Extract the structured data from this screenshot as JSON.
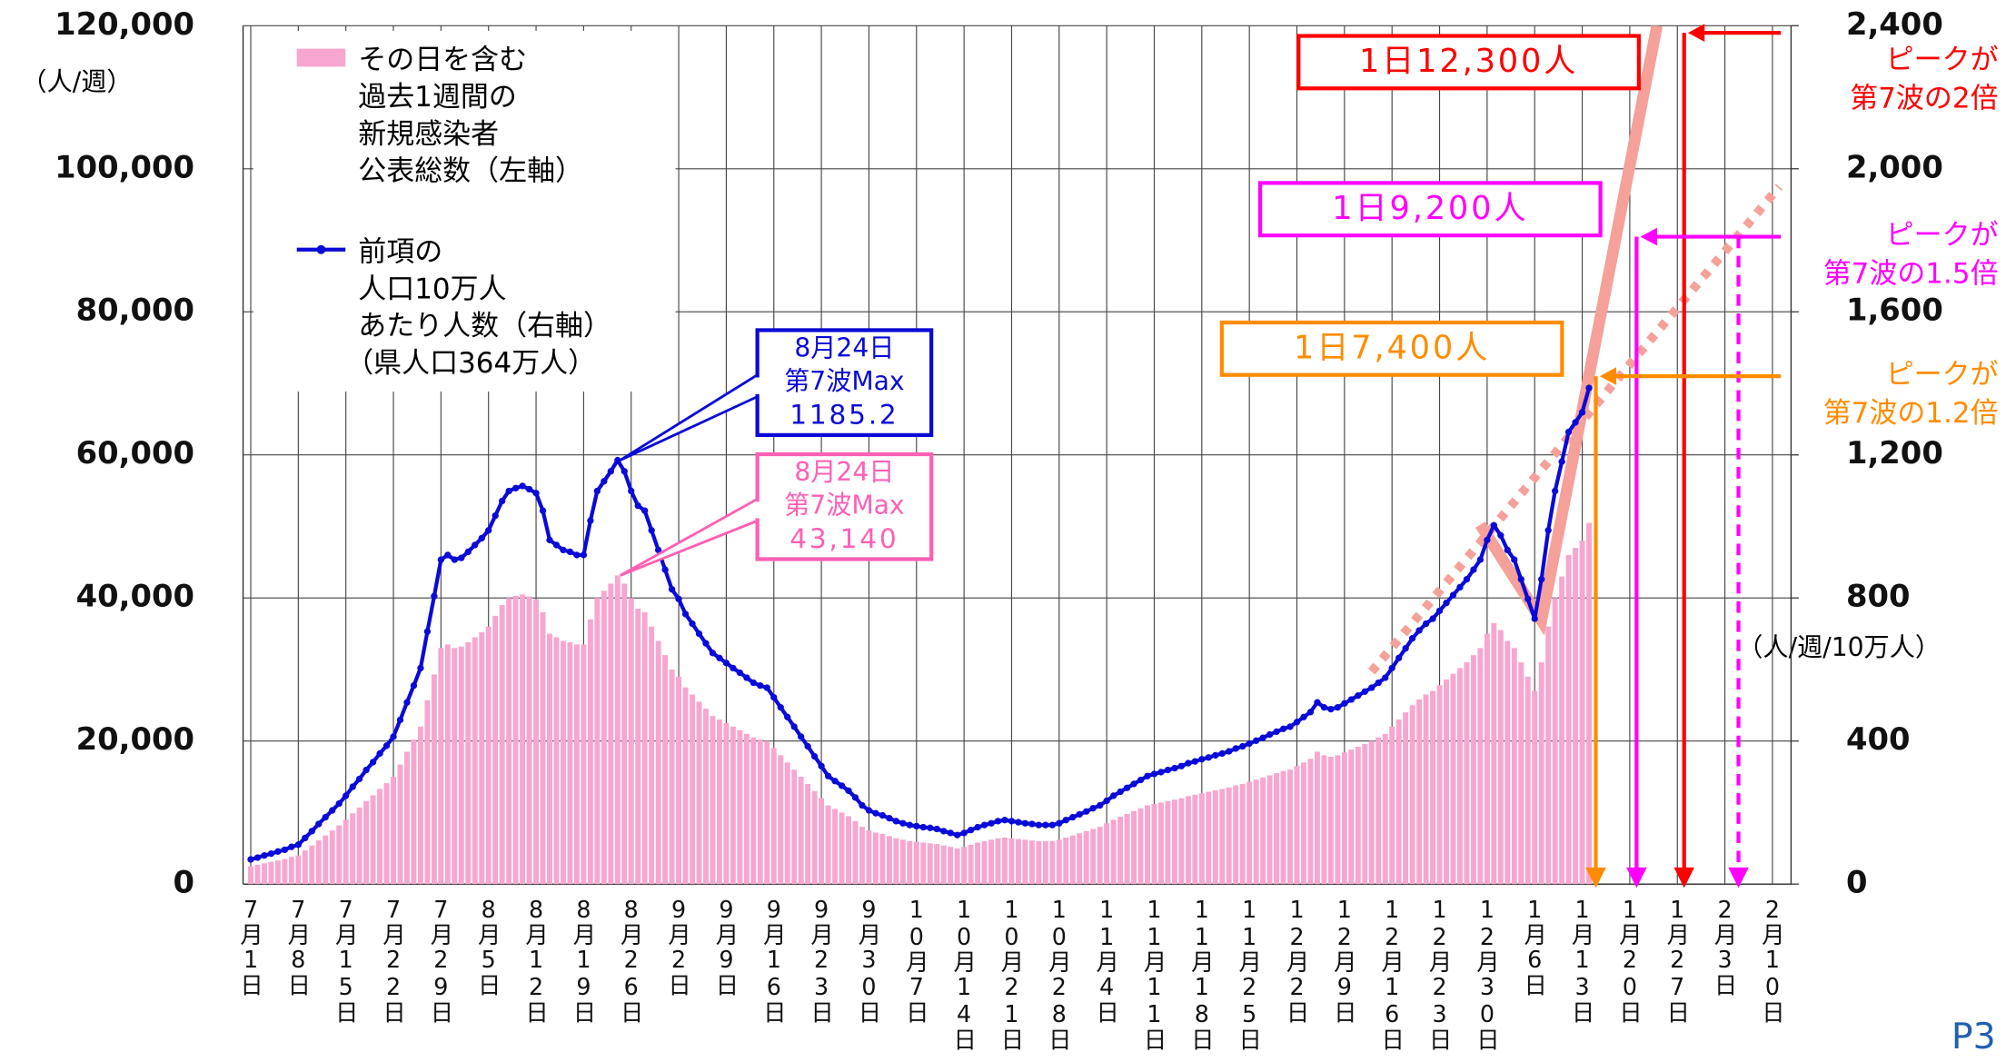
{
  "chart_data": {
    "type": "bar_line",
    "y_unit": "（人/週）",
    "y2_unit": "（人/週/10万人）",
    "page_label": "P3",
    "ylim": [
      0,
      120000
    ],
    "yticks": [
      0,
      {
        "value": 20000,
        "label": "20,000"
      },
      {
        "value": 40000,
        "label": "40,000"
      },
      {
        "value": 60000,
        "label": "60,000"
      },
      {
        "value": 80000,
        "label": "80,000"
      },
      {
        "value": 100000,
        "label": "100,000"
      },
      {
        "value": 120000,
        "label": "120,000"
      }
    ],
    "y2lim": [
      0,
      2400
    ],
    "y2ticks": [
      0,
      400,
      800,
      {
        "value": 1200,
        "label": "1,200"
      },
      {
        "value": 1600,
        "label": "1,600"
      },
      {
        "value": 2000,
        "label": "2,000"
      },
      {
        "value": 2400,
        "label": "2,400"
      }
    ],
    "grid": true,
    "categories": [
      "7月1日",
      null,
      null,
      null,
      null,
      null,
      null,
      "7月8日",
      null,
      null,
      null,
      null,
      null,
      null,
      "7月15日",
      null,
      null,
      null,
      null,
      null,
      null,
      "7月22日",
      null,
      null,
      null,
      null,
      null,
      null,
      "7月29日",
      null,
      null,
      null,
      null,
      null,
      null,
      "8月5日",
      null,
      null,
      null,
      null,
      null,
      null,
      "8月12日",
      null,
      null,
      null,
      null,
      null,
      null,
      "8月19日",
      null,
      null,
      null,
      null,
      null,
      null,
      "8月26日",
      null,
      null,
      null,
      null,
      null,
      null,
      "9月2日",
      null,
      null,
      null,
      null,
      null,
      null,
      "9月9日",
      null,
      null,
      null,
      null,
      null,
      null,
      "9月16日",
      null,
      null,
      null,
      null,
      null,
      null,
      "9月23日",
      null,
      null,
      null,
      null,
      null,
      null,
      "9月30日",
      null,
      null,
      null,
      null,
      null,
      null,
      "10月7日",
      null,
      null,
      null,
      null,
      null,
      null,
      "10月14日",
      null,
      null,
      null,
      null,
      null,
      null,
      "10月21日",
      null,
      null,
      null,
      null,
      null,
      null,
      "10月28日",
      null,
      null,
      null,
      null,
      null,
      null,
      "11月4日",
      null,
      null,
      null,
      null,
      null,
      null,
      "11月11日",
      null,
      null,
      null,
      null,
      null,
      null,
      "11月18日",
      null,
      null,
      null,
      null,
      null,
      null,
      "11月25日",
      null,
      null,
      null,
      null,
      null,
      null,
      "12月2日",
      null,
      null,
      null,
      null,
      null,
      null,
      "12月9日",
      null,
      null,
      null,
      null,
      null,
      null,
      "12月16日",
      null,
      null,
      null,
      null,
      null,
      null,
      "12月23日",
      null,
      null,
      null,
      null,
      null,
      null,
      "12月30日",
      null,
      null,
      null,
      null,
      null,
      null,
      "1月6日",
      null,
      null,
      null,
      null,
      null,
      null,
      "1月13日",
      null,
      null,
      null,
      null,
      null,
      null,
      "1月20日",
      null,
      null,
      null,
      null,
      null,
      null,
      "1月27日",
      null,
      null,
      null,
      null,
      null,
      null,
      "2月3日",
      null,
      null,
      null,
      null,
      null,
      null,
      "2月10日"
    ],
    "series": [
      {
        "name": [
          "その日を含む",
          "過去1週間の",
          "新規感染者",
          "公表総数（左軸）"
        ],
        "kind": "bar",
        "color": "#f7a6cf",
        "values": [
          2500,
          2700,
          2900,
          3100,
          3300,
          3500,
          3800,
          4000,
          4700,
          5400,
          6100,
          6800,
          7500,
          8200,
          9000,
          9900,
          10700,
          11600,
          12400,
          13300,
          14100,
          15000,
          16700,
          18500,
          20200,
          22000,
          25700,
          29300,
          33000,
          33500,
          33000,
          33200,
          33800,
          34500,
          35200,
          36000,
          37500,
          39000,
          40000,
          40300,
          40500,
          40200,
          39800,
          38000,
          35000,
          34500,
          34000,
          33800,
          33500,
          33500,
          37000,
          40000,
          41000,
          42000,
          43140,
          42000,
          40000,
          38500,
          38000,
          36000,
          34000,
          32000,
          30000,
          29000,
          27500,
          26500,
          25500,
          24500,
          23500,
          23000,
          22500,
          22000,
          21500,
          21000,
          20500,
          20200,
          20000,
          19000,
          18000,
          17000,
          16000,
          15000,
          14000,
          13000,
          12000,
          11000,
          10500,
          10000,
          9500,
          8800,
          8000,
          7500,
          7200,
          7000,
          6700,
          6400,
          6200,
          6000,
          5900,
          5800,
          5700,
          5600,
          5400,
          5200,
          5000,
          5200,
          5500,
          5800,
          6000,
          6200,
          6400,
          6500,
          6400,
          6300,
          6200,
          6100,
          6000,
          6000,
          6000,
          6200,
          6500,
          6800,
          7100,
          7400,
          7700,
          8000,
          8500,
          9000,
          9400,
          9800,
          10200,
          10600,
          11000,
          11200,
          11400,
          11600,
          11800,
          12000,
          12300,
          12500,
          12700,
          12900,
          13100,
          13300,
          13500,
          13800,
          14000,
          14300,
          14600,
          14900,
          15200,
          15500,
          15800,
          16000,
          16500,
          17000,
          17500,
          18500,
          18000,
          17800,
          18000,
          18400,
          18800,
          19200,
          19600,
          20000,
          20500,
          21000,
          22000,
          23000,
          24000,
          25000,
          25800,
          26500,
          27000,
          27800,
          28600,
          29400,
          30200,
          31000,
          32000,
          33000,
          35000,
          36500,
          35500,
          34000,
          33000,
          31000,
          29000,
          27000,
          31000,
          36000,
          40000,
          43000,
          46000,
          47000,
          48000,
          50500,
          null,
          null,
          null,
          null,
          null,
          null,
          null,
          null,
          null,
          null,
          null,
          null,
          null,
          null,
          null,
          null,
          null,
          null,
          null,
          null,
          null,
          null,
          null,
          null,
          null,
          null,
          null
        ]
      },
      {
        "name": [
          "前項の",
          "人口10万人",
          "あたり人数（右軸）",
          "（県人口364万人）"
        ],
        "kind": "line",
        "axis": "y2",
        "color": "#0a0ad8",
        "values": [
          69,
          74,
          80,
          85,
          91,
          96,
          104,
          110,
          129,
          148,
          168,
          187,
          206,
          225,
          247,
          272,
          294,
          319,
          341,
          365,
          387,
          412,
          459,
          508,
          555,
          604,
          706,
          805,
          907,
          920,
          907,
          912,
          929,
          948,
          967,
          989,
          1030,
          1071,
          1099,
          1107,
          1113,
          1104,
          1093,
          1044,
          962,
          948,
          934,
          929,
          920,
          920,
          1016,
          1099,
          1126,
          1154,
          1185.2,
          1154,
          1099,
          1058,
          1044,
          989,
          934,
          879,
          824,
          797,
          755,
          728,
          700,
          673,
          646,
          632,
          618,
          604,
          591,
          577,
          563,
          555,
          549,
          522,
          494,
          467,
          440,
          412,
          385,
          357,
          330,
          302,
          288,
          275,
          261,
          242,
          220,
          206,
          198,
          192,
          184,
          176,
          170,
          165,
          162,
          159,
          157,
          154,
          148,
          143,
          137,
          143,
          151,
          159,
          165,
          170,
          176,
          179,
          176,
          173,
          170,
          168,
          165,
          165,
          165,
          170,
          179,
          187,
          195,
          203,
          212,
          220,
          233,
          247,
          258,
          269,
          280,
          291,
          302,
          308,
          313,
          319,
          324,
          330,
          338,
          343,
          349,
          354,
          360,
          365,
          371,
          379,
          385,
          393,
          401,
          409,
          418,
          426,
          434,
          440,
          453,
          467,
          481,
          508,
          494,
          489,
          494,
          505,
          516,
          527,
          538,
          549,
          563,
          577,
          604,
          632,
          659,
          687,
          709,
          728,
          742,
          764,
          786,
          808,
          830,
          852,
          879,
          907,
          962,
          1003,
          975,
          934,
          907,
          852,
          797,
          742,
          852,
          989,
          1099,
          1181,
          1264,
          1291,
          1319,
          1387,
          null,
          null,
          null,
          null,
          null,
          null,
          null,
          null,
          null,
          null,
          null,
          null,
          null,
          null,
          null,
          null,
          null,
          null,
          null,
          null,
          null,
          null,
          null,
          null,
          null,
          null,
          null
        ]
      }
    ],
    "callouts": [
      {
        "series": 1,
        "index": 54,
        "lines": [
          "8月24日",
          "第7波Max"
        ],
        "value_label": "1185.2",
        "color": "#0a0ad8"
      },
      {
        "series": 0,
        "index": 54,
        "lines": [
          "8月24日",
          "第7波Max"
        ],
        "value_label": "43,140",
        "color": "#ff5fb4"
      }
    ],
    "projections": [
      {
        "color": "#f5a099",
        "dashed": false,
        "points": [
          [
            181,
            1005
          ],
          [
            190,
            737
          ],
          [
            207,
            2400
          ]
        ]
      },
      {
        "color": "#f5a099",
        "dashed": true,
        "points": [
          [
            165,
            594
          ],
          [
            225,
            1950
          ]
        ]
      }
    ],
    "scenarios": [
      {
        "label": "1日12,300人",
        "note": [
          "ピークが",
          "第7波の2倍"
        ],
        "level": 2380,
        "x_index": 211,
        "color": "#ff0000"
      },
      {
        "label": "1日9,200人",
        "note": [
          "ピークが",
          "第7波の1.5倍"
        ],
        "level": 1810,
        "x_index": 204,
        "dashed_x_index": 219,
        "color": "#ff00ff"
      },
      {
        "label": "1日7,400人",
        "note": [
          "ピークが",
          "第7波の1.2倍"
        ],
        "level": 1420,
        "x_index": 198,
        "color": "#ff8c00"
      }
    ]
  }
}
